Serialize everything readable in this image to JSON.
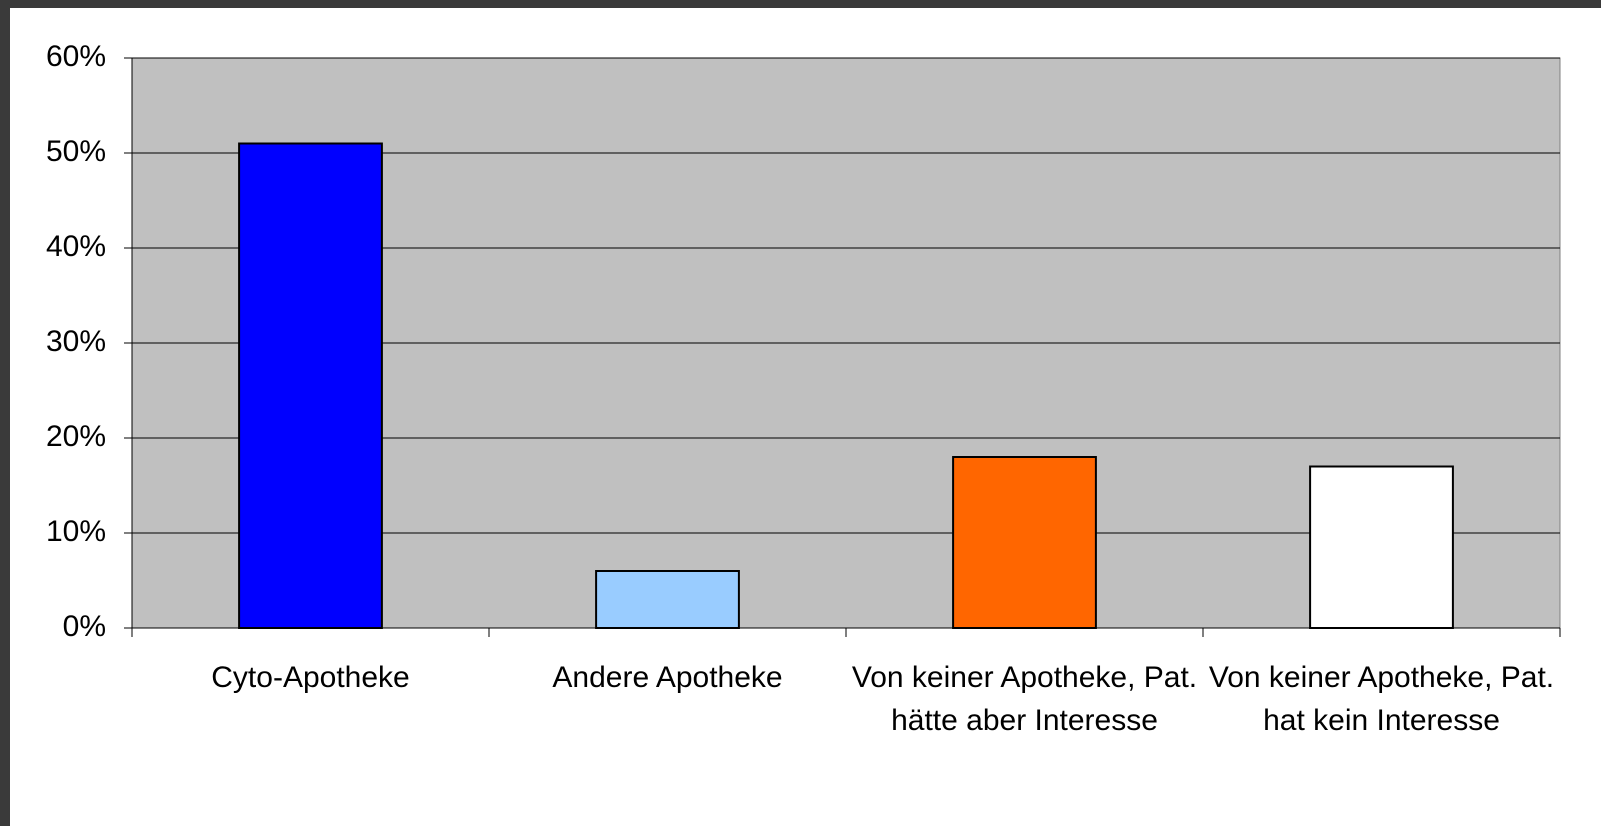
{
  "chart_data": {
    "type": "bar",
    "categories": [
      "Cyto-Apotheke",
      "Andere Apotheke",
      "Von keiner Apotheke, Pat. hätte aber Interesse",
      "Von keiner Apotheke, Pat. hat kein Interesse"
    ],
    "values": [
      51,
      6,
      18,
      17
    ],
    "colors": [
      "#0000ff",
      "#99ccff",
      "#ff6600",
      "#ffffff"
    ],
    "ylim": [
      0,
      60
    ],
    "yticks": [
      {
        "value": 0,
        "label": "0%"
      },
      {
        "value": 10,
        "label": "10%"
      },
      {
        "value": 20,
        "label": "20%"
      },
      {
        "value": 30,
        "label": "30%"
      },
      {
        "value": 40,
        "label": "40%"
      },
      {
        "value": 50,
        "label": "50%"
      },
      {
        "value": 60,
        "label": "60%"
      }
    ],
    "grid": true
  }
}
